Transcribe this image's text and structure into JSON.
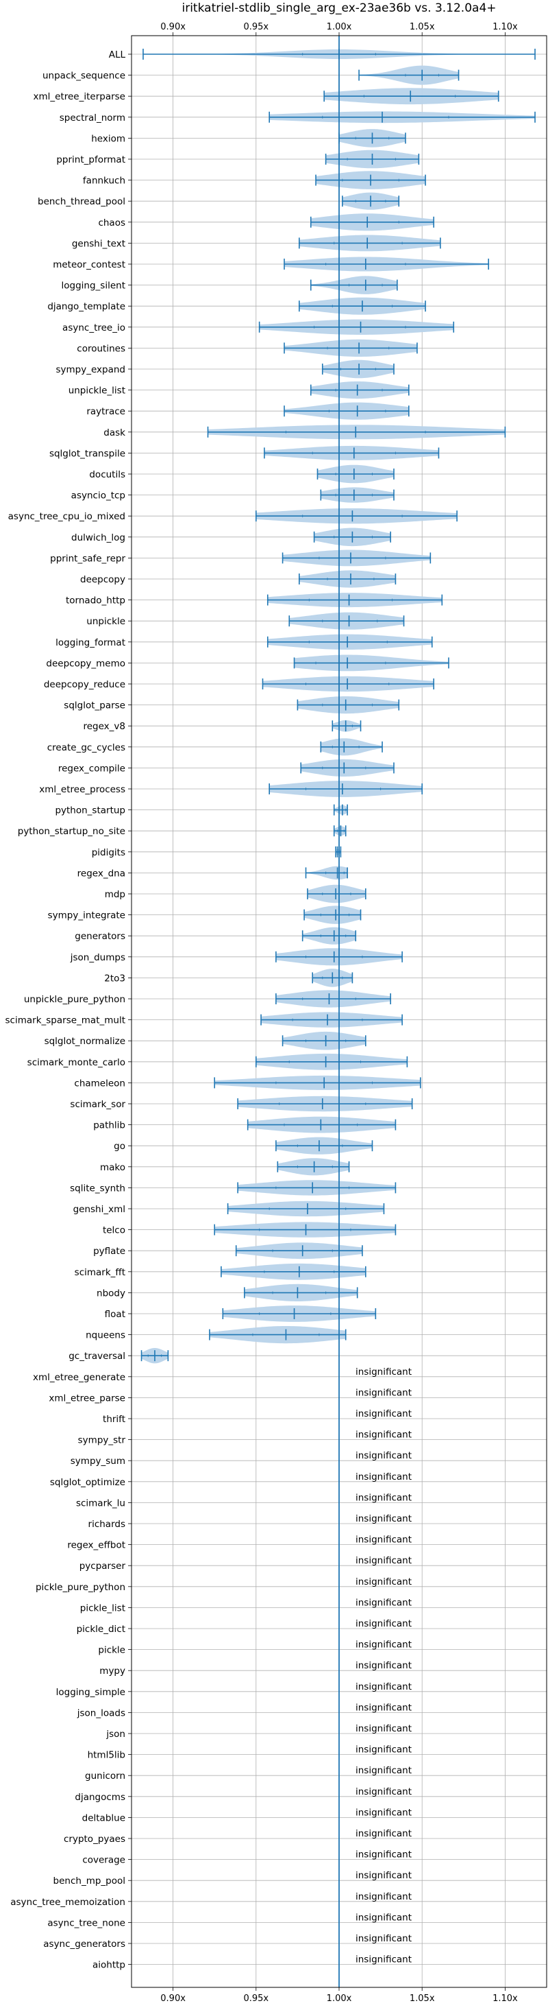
{
  "chart_data": {
    "type": "violin",
    "title": "iritkatriel-stdlib_single_arg_ex-23ae36b vs. 3.12.0a4+",
    "xlabel": "",
    "ylabel": "",
    "xlim": [
      0.875,
      1.125
    ],
    "x_ticks": [
      0.9,
      0.95,
      1.0,
      1.05,
      1.1
    ],
    "x_tick_labels": [
      "0.90x",
      "0.95x",
      "1.00x",
      "1.05x",
      "1.10x"
    ],
    "reference_line": 1.0,
    "grid": true,
    "color": "#1f77b4",
    "fill_color": "#b8d3ea",
    "insignificant_label": "insignificant",
    "benchmarks": [
      {
        "name": "ALL",
        "min": 0.882,
        "max": 1.118,
        "mean": 1.0,
        "q1": 0.978,
        "q3": 1.022,
        "width": 0.5
      },
      {
        "name": "unpack_sequence",
        "min": 1.012,
        "max": 1.072,
        "mean": 1.05,
        "q1": 1.04,
        "q3": 1.06,
        "width": 1.0
      },
      {
        "name": "xml_etree_iterparse",
        "min": 0.991,
        "max": 1.096,
        "mean": 1.043,
        "q1": 1.015,
        "q3": 1.07,
        "width": 0.85
      },
      {
        "name": "spectral_norm",
        "min": 0.958,
        "max": 1.118,
        "mean": 1.026,
        "q1": 0.99,
        "q3": 1.066,
        "width": 0.6
      },
      {
        "name": "hexiom",
        "min": 1.0,
        "max": 1.04,
        "mean": 1.02,
        "q1": 1.01,
        "q3": 1.03,
        "width": 0.95
      },
      {
        "name": "pprint_pformat",
        "min": 0.992,
        "max": 1.048,
        "mean": 1.02,
        "q1": 1.005,
        "q3": 1.034,
        "width": 0.95
      },
      {
        "name": "fannkuch",
        "min": 0.986,
        "max": 1.052,
        "mean": 1.019,
        "q1": 1.002,
        "q3": 1.036,
        "width": 0.95
      },
      {
        "name": "bench_thread_pool",
        "min": 1.002,
        "max": 1.036,
        "mean": 1.019,
        "q1": 1.01,
        "q3": 1.028,
        "width": 0.9
      },
      {
        "name": "chaos",
        "min": 0.983,
        "max": 1.057,
        "mean": 1.017,
        "q1": 1.0,
        "q3": 1.036,
        "width": 0.9
      },
      {
        "name": "genshi_text",
        "min": 0.976,
        "max": 1.061,
        "mean": 1.017,
        "q1": 0.997,
        "q3": 1.038,
        "width": 0.85
      },
      {
        "name": "meteor_contest",
        "min": 0.967,
        "max": 1.09,
        "mean": 1.016,
        "q1": 0.992,
        "q3": 1.04,
        "width": 0.75
      },
      {
        "name": "logging_silent",
        "min": 0.983,
        "max": 1.035,
        "mean": 1.016,
        "q1": 1.006,
        "q3": 1.026,
        "width": 0.95
      },
      {
        "name": "django_template",
        "min": 0.976,
        "max": 1.052,
        "mean": 1.014,
        "q1": 0.996,
        "q3": 1.032,
        "width": 0.9
      },
      {
        "name": "async_tree_io",
        "min": 0.952,
        "max": 1.069,
        "mean": 1.013,
        "q1": 0.985,
        "q3": 1.04,
        "width": 0.8
      },
      {
        "name": "coroutines",
        "min": 0.967,
        "max": 1.047,
        "mean": 1.012,
        "q1": 0.993,
        "q3": 1.03,
        "width": 0.9
      },
      {
        "name": "sympy_expand",
        "min": 0.99,
        "max": 1.033,
        "mean": 1.012,
        "q1": 1.001,
        "q3": 1.022,
        "width": 0.95
      },
      {
        "name": "unpickle_list",
        "min": 0.983,
        "max": 1.042,
        "mean": 1.011,
        "q1": 0.998,
        "q3": 1.026,
        "width": 0.9
      },
      {
        "name": "raytrace",
        "min": 0.967,
        "max": 1.042,
        "mean": 1.011,
        "q1": 0.994,
        "q3": 1.028,
        "width": 0.9
      },
      {
        "name": "dask",
        "min": 0.921,
        "max": 1.1,
        "mean": 1.01,
        "q1": 0.968,
        "q3": 1.052,
        "width": 0.75
      },
      {
        "name": "sqlglot_transpile",
        "min": 0.955,
        "max": 1.06,
        "mean": 1.009,
        "q1": 0.984,
        "q3": 1.034,
        "width": 0.75
      },
      {
        "name": "docutils",
        "min": 0.987,
        "max": 1.033,
        "mean": 1.009,
        "q1": 0.998,
        "q3": 1.02,
        "width": 0.95
      },
      {
        "name": "asyncio_tcp",
        "min": 0.989,
        "max": 1.033,
        "mean": 1.009,
        "q1": 0.998,
        "q3": 1.02,
        "width": 0.8
      },
      {
        "name": "async_tree_cpu_io_mixed",
        "min": 0.95,
        "max": 1.071,
        "mean": 1.008,
        "q1": 0.978,
        "q3": 1.038,
        "width": 0.8
      },
      {
        "name": "dulwich_log",
        "min": 0.985,
        "max": 1.031,
        "mean": 1.008,
        "q1": 0.997,
        "q3": 1.02,
        "width": 0.95
      },
      {
        "name": "pprint_safe_repr",
        "min": 0.966,
        "max": 1.055,
        "mean": 1.007,
        "q1": 0.988,
        "q3": 1.028,
        "width": 0.85
      },
      {
        "name": "deepcopy",
        "min": 0.976,
        "max": 1.034,
        "mean": 1.007,
        "q1": 0.993,
        "q3": 1.021,
        "width": 0.9
      },
      {
        "name": "tornado_http",
        "min": 0.957,
        "max": 1.062,
        "mean": 1.006,
        "q1": 0.982,
        "q3": 1.032,
        "width": 0.75
      },
      {
        "name": "unpickle",
        "min": 0.97,
        "max": 1.039,
        "mean": 1.006,
        "q1": 0.99,
        "q3": 1.023,
        "width": 0.9
      },
      {
        "name": "logging_format",
        "min": 0.957,
        "max": 1.056,
        "mean": 1.005,
        "q1": 0.982,
        "q3": 1.029,
        "width": 0.8
      },
      {
        "name": "deepcopy_memo",
        "min": 0.973,
        "max": 1.066,
        "mean": 1.005,
        "q1": 0.986,
        "q3": 1.028,
        "width": 0.85
      },
      {
        "name": "deepcopy_reduce",
        "min": 0.954,
        "max": 1.057,
        "mean": 1.005,
        "q1": 0.98,
        "q3": 1.03,
        "width": 0.8
      },
      {
        "name": "sqlglot_parse",
        "min": 0.975,
        "max": 1.036,
        "mean": 1.004,
        "q1": 0.99,
        "q3": 1.02,
        "width": 0.9
      },
      {
        "name": "regex_v8",
        "min": 0.996,
        "max": 1.013,
        "mean": 1.004,
        "q1": 1.0,
        "q3": 1.008,
        "width": 0.6
      },
      {
        "name": "create_gc_cycles",
        "min": 0.989,
        "max": 1.026,
        "mean": 1.003,
        "q1": 0.996,
        "q3": 1.012,
        "width": 0.9
      },
      {
        "name": "regex_compile",
        "min": 0.977,
        "max": 1.033,
        "mean": 1.003,
        "q1": 0.99,
        "q3": 1.016,
        "width": 0.9
      },
      {
        "name": "xml_etree_process",
        "min": 0.958,
        "max": 1.05,
        "mean": 1.002,
        "q1": 0.98,
        "q3": 1.025,
        "width": 0.85
      },
      {
        "name": "python_startup",
        "min": 0.997,
        "max": 1.005,
        "mean": 1.002,
        "q1": 1.0,
        "q3": 1.004,
        "width": 0.5
      },
      {
        "name": "python_startup_no_site",
        "min": 0.997,
        "max": 1.004,
        "mean": 1.001,
        "q1": 0.999,
        "q3": 1.003,
        "width": 0.5
      },
      {
        "name": "pidigits",
        "min": 0.998,
        "max": 1.001,
        "mean": 0.999,
        "q1": 0.998,
        "q3": 1.0,
        "width": 0.3
      },
      {
        "name": "regex_dna",
        "min": 0.98,
        "max": 1.005,
        "mean": 0.999,
        "q1": 0.992,
        "q3": 1.003,
        "width": 0.7
      },
      {
        "name": "mdp",
        "min": 0.981,
        "max": 1.016,
        "mean": 0.998,
        "q1": 0.99,
        "q3": 1.007,
        "width": 0.95
      },
      {
        "name": "sympy_integrate",
        "min": 0.979,
        "max": 1.013,
        "mean": 0.998,
        "q1": 0.989,
        "q3": 1.006,
        "width": 0.95
      },
      {
        "name": "generators",
        "min": 0.978,
        "max": 1.01,
        "mean": 0.997,
        "q1": 0.989,
        "q3": 1.004,
        "width": 0.9
      },
      {
        "name": "json_dumps",
        "min": 0.962,
        "max": 1.038,
        "mean": 0.997,
        "q1": 0.98,
        "q3": 1.014,
        "width": 0.9
      },
      {
        "name": "2to3",
        "min": 0.984,
        "max": 1.008,
        "mean": 0.996,
        "q1": 0.99,
        "q3": 1.002,
        "width": 0.95
      },
      {
        "name": "unpickle_pure_python",
        "min": 0.962,
        "max": 1.031,
        "mean": 0.994,
        "q1": 0.978,
        "q3": 1.01,
        "width": 0.9
      },
      {
        "name": "scimark_sparse_mat_mult",
        "min": 0.953,
        "max": 1.038,
        "mean": 0.993,
        "q1": 0.972,
        "q3": 1.014,
        "width": 0.8
      },
      {
        "name": "sqlglot_normalize",
        "min": 0.966,
        "max": 1.016,
        "mean": 0.992,
        "q1": 0.98,
        "q3": 1.004,
        "width": 0.95
      },
      {
        "name": "scimark_monte_carlo",
        "min": 0.95,
        "max": 1.041,
        "mean": 0.992,
        "q1": 0.97,
        "q3": 1.013,
        "width": 0.85
      },
      {
        "name": "chameleon",
        "min": 0.925,
        "max": 1.049,
        "mean": 0.991,
        "q1": 0.962,
        "q3": 1.02,
        "width": 0.75
      },
      {
        "name": "scimark_sor",
        "min": 0.939,
        "max": 1.044,
        "mean": 0.99,
        "q1": 0.964,
        "q3": 1.016,
        "width": 0.8
      },
      {
        "name": "pathlib",
        "min": 0.945,
        "max": 1.034,
        "mean": 0.989,
        "q1": 0.967,
        "q3": 1.011,
        "width": 0.85
      },
      {
        "name": "go",
        "min": 0.962,
        "max": 1.02,
        "mean": 0.988,
        "q1": 0.975,
        "q3": 1.002,
        "width": 0.9
      },
      {
        "name": "mako",
        "min": 0.963,
        "max": 1.006,
        "mean": 0.985,
        "q1": 0.975,
        "q3": 0.996,
        "width": 0.9
      },
      {
        "name": "sqlite_synth",
        "min": 0.939,
        "max": 1.034,
        "mean": 0.984,
        "q1": 0.962,
        "q3": 1.006,
        "width": 0.8
      },
      {
        "name": "genshi_xml",
        "min": 0.933,
        "max": 1.027,
        "mean": 0.981,
        "q1": 0.958,
        "q3": 1.004,
        "width": 0.8
      },
      {
        "name": "telco",
        "min": 0.925,
        "max": 1.034,
        "mean": 0.98,
        "q1": 0.952,
        "q3": 1.007,
        "width": 0.8
      },
      {
        "name": "pyflate",
        "min": 0.938,
        "max": 1.014,
        "mean": 0.978,
        "q1": 0.96,
        "q3": 0.996,
        "width": 0.85
      },
      {
        "name": "scimark_fft",
        "min": 0.929,
        "max": 1.016,
        "mean": 0.976,
        "q1": 0.955,
        "q3": 0.997,
        "width": 0.85
      },
      {
        "name": "nbody",
        "min": 0.943,
        "max": 1.011,
        "mean": 0.975,
        "q1": 0.96,
        "q3": 0.992,
        "width": 0.9
      },
      {
        "name": "float",
        "min": 0.93,
        "max": 1.022,
        "mean": 0.973,
        "q1": 0.952,
        "q3": 0.995,
        "width": 0.85
      },
      {
        "name": "nqueens",
        "min": 0.922,
        "max": 1.004,
        "mean": 0.968,
        "q1": 0.948,
        "q3": 0.988,
        "width": 0.9
      },
      {
        "name": "gc_traversal",
        "min": 0.881,
        "max": 0.897,
        "mean": 0.889,
        "q1": 0.885,
        "q3": 0.893,
        "width": 0.8
      }
    ],
    "insignificant": [
      "xml_etree_generate",
      "xml_etree_parse",
      "thrift",
      "sympy_str",
      "sympy_sum",
      "sqlglot_optimize",
      "scimark_lu",
      "richards",
      "regex_effbot",
      "pycparser",
      "pickle_pure_python",
      "pickle_list",
      "pickle_dict",
      "pickle",
      "mypy",
      "logging_simple",
      "json_loads",
      "json",
      "html5lib",
      "gunicorn",
      "djangocms",
      "deltablue",
      "crypto_pyaes",
      "coverage",
      "bench_mp_pool",
      "async_tree_memoization",
      "async_tree_none",
      "async_generators",
      "aiohttp"
    ]
  }
}
